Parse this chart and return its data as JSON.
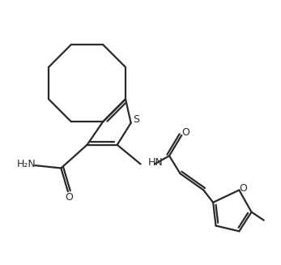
{
  "background_color": "#ffffff",
  "line_color": "#2a2a2a",
  "line_width": 1.6,
  "figsize": [
    3.47,
    3.27
  ],
  "dpi": 100,
  "xlim": [
    0,
    10
  ],
  "ylim": [
    0,
    9.5
  ]
}
